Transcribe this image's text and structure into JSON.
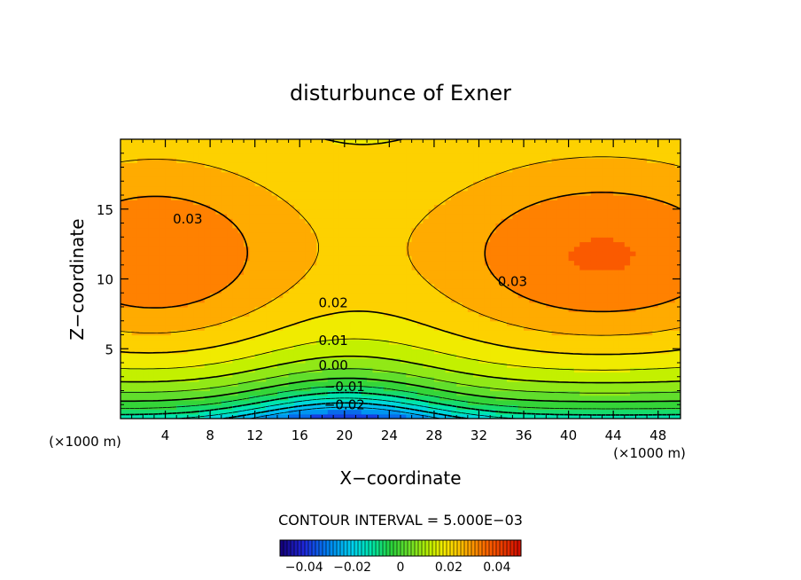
{
  "chart_data": {
    "type": "heatmap",
    "title": "disturbunce of Exner",
    "xlabel": "X−coordinate",
    "ylabel": "Z−coordinate",
    "x_unit_left": "(×1000 m)",
    "x_unit_right": "(×1000 m)",
    "xlim": [
      0,
      50
    ],
    "ylim": [
      0,
      20
    ],
    "x_ticks": [
      4,
      8,
      12,
      16,
      20,
      24,
      28,
      32,
      36,
      40,
      44,
      48
    ],
    "y_ticks": [
      5,
      10,
      15
    ],
    "contour_interval_text": "CONTOUR INTERVAL = 5.000E−03",
    "contour_interval": 0.005,
    "contour_levels": [
      -0.025,
      -0.02,
      -0.015,
      -0.01,
      -0.005,
      0.0,
      0.005,
      0.01,
      0.015,
      0.02,
      0.025,
      0.03
    ],
    "contour_labels": [
      {
        "text": "0.03",
        "x": 6,
        "z": 14.3
      },
      {
        "text": "0.03",
        "x": 35,
        "z": 9.8
      },
      {
        "text": "0.02",
        "x": 19,
        "z": 8.3
      },
      {
        "text": "0.01",
        "x": 19,
        "z": 5.6
      },
      {
        "text": "0.00",
        "x": 19,
        "z": 3.8
      },
      {
        "text": "−0.01",
        "x": 20,
        "z": 2.3
      },
      {
        "text": "−0.02",
        "x": 20,
        "z": 1.0
      }
    ],
    "colorbar": {
      "min": -0.05,
      "max": 0.05,
      "tick_values": [
        -0.04,
        -0.02,
        0,
        0.02,
        0.04
      ],
      "tick_labels": [
        "−0.04",
        "−0.02",
        "0",
        "0.02",
        "0.04"
      ]
    },
    "field_description_values": {
      "bottom_center_min": -0.025,
      "left_lobe_max": 0.034,
      "right_lobe_max": 0.036,
      "saddle_center": 0.023
    }
  }
}
